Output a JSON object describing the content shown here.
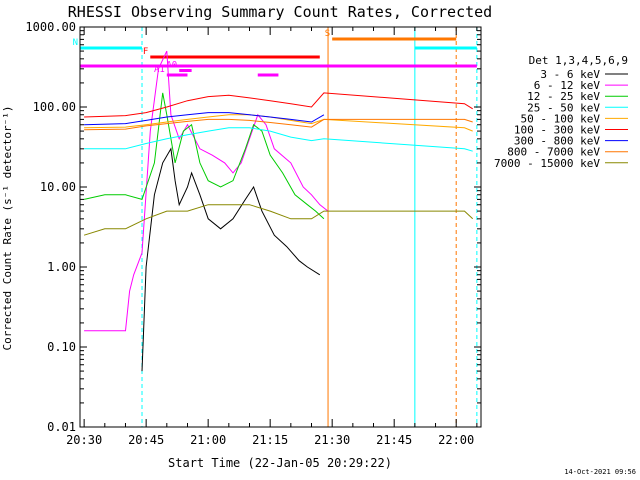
{
  "chart_data": {
    "type": "line",
    "title": "RHESSI Observing Summary Count Rates, Corrected",
    "xlabel": "Start Time (22-Jan-05 20:29:22)",
    "ylabel": "Corrected Count Rate (s⁻¹ detector⁻¹)",
    "y_scale": "log",
    "ylim": [
      0.01,
      1000
    ],
    "xlim": [
      "20:29",
      "22:06"
    ],
    "x_ticks": [
      "20:30",
      "20:45",
      "21:00",
      "21:15",
      "21:30",
      "21:45",
      "22:00"
    ],
    "y_ticks": [
      "0.01",
      "0.10",
      "1.00",
      "10.00",
      "100.00",
      "1000.00"
    ],
    "legend_title": "Det 1,3,4,5,6,9",
    "legend_position": "right",
    "footer_date": "14-Oct-2021 09:56",
    "series": [
      {
        "name": "3 - 6 keV",
        "color": "#000000",
        "points": [
          [
            "20:44",
            0.05
          ],
          [
            "20:45",
            1.0
          ],
          [
            "20:47",
            8
          ],
          [
            "20:49",
            20
          ],
          [
            "20:51",
            30
          ],
          [
            "20:52",
            12
          ],
          [
            "20:53",
            6
          ],
          [
            "20:55",
            10
          ],
          [
            "20:56",
            15
          ],
          [
            "20:58",
            8
          ],
          [
            "21:00",
            4
          ],
          [
            "21:03",
            3
          ],
          [
            "21:06",
            4
          ],
          [
            "21:09",
            7
          ],
          [
            "21:11",
            10
          ],
          [
            "21:13",
            5
          ],
          [
            "21:16",
            2.5
          ],
          [
            "21:19",
            1.8
          ],
          [
            "21:22",
            1.2
          ],
          [
            "21:24",
            1.0
          ],
          [
            "21:27",
            0.8
          ]
        ]
      },
      {
        "name": "6 - 12 keV",
        "color": "#ff00ff",
        "points": [
          [
            "20:30",
            0.16
          ],
          [
            "20:40",
            0.16
          ],
          [
            "20:41",
            0.5
          ],
          [
            "20:42",
            0.8
          ],
          [
            "20:44",
            1.5
          ],
          [
            "20:46",
            50
          ],
          [
            "20:48",
            300
          ],
          [
            "20:50",
            500
          ],
          [
            "20:51",
            80
          ],
          [
            "20:53",
            40
          ],
          [
            "20:55",
            60
          ],
          [
            "20:58",
            30
          ],
          [
            "21:01",
            25
          ],
          [
            "21:04",
            20
          ],
          [
            "21:06",
            15
          ],
          [
            "21:08",
            20
          ],
          [
            "21:10",
            40
          ],
          [
            "21:12",
            80
          ],
          [
            "21:14",
            60
          ],
          [
            "21:16",
            30
          ],
          [
            "21:20",
            20
          ],
          [
            "21:23",
            10
          ],
          [
            "21:25",
            8
          ],
          [
            "21:27",
            6
          ],
          [
            "21:29",
            5
          ]
        ]
      },
      {
        "name": "12 - 25 keV",
        "color": "#00cc00",
        "points": [
          [
            "20:30",
            7
          ],
          [
            "20:35",
            8
          ],
          [
            "20:40",
            8
          ],
          [
            "20:44",
            7
          ],
          [
            "20:47",
            20
          ],
          [
            "20:49",
            150
          ],
          [
            "20:50",
            80
          ],
          [
            "20:52",
            20
          ],
          [
            "20:54",
            50
          ],
          [
            "20:56",
            60
          ],
          [
            "20:58",
            20
          ],
          [
            "21:00",
            12
          ],
          [
            "21:03",
            10
          ],
          [
            "21:06",
            12
          ],
          [
            "21:09",
            30
          ],
          [
            "21:11",
            60
          ],
          [
            "21:13",
            50
          ],
          [
            "21:15",
            25
          ],
          [
            "21:18",
            15
          ],
          [
            "21:21",
            8
          ],
          [
            "21:24",
            6
          ],
          [
            "21:26",
            5
          ],
          [
            "21:28",
            4
          ]
        ]
      },
      {
        "name": "25 - 50 keV",
        "color": "#00ffff",
        "points": [
          [
            "20:30",
            30
          ],
          [
            "20:40",
            30
          ],
          [
            "20:45",
            35
          ],
          [
            "20:50",
            40
          ],
          [
            "20:55",
            45
          ],
          [
            "21:00",
            50
          ],
          [
            "21:05",
            55
          ],
          [
            "21:10",
            55
          ],
          [
            "21:15",
            50
          ],
          [
            "21:20",
            42
          ],
          [
            "21:25",
            38
          ],
          [
            "21:28",
            40
          ],
          [
            "22:02",
            30
          ],
          [
            "22:04",
            28
          ]
        ]
      },
      {
        "name": "50 - 100 keV",
        "color": "#ffaa00",
        "points": [
          [
            "20:30",
            55
          ],
          [
            "20:40",
            56
          ],
          [
            "20:45",
            60
          ],
          [
            "20:50",
            65
          ],
          [
            "20:55",
            70
          ],
          [
            "21:00",
            75
          ],
          [
            "21:05",
            80
          ],
          [
            "21:10",
            80
          ],
          [
            "21:15",
            75
          ],
          [
            "21:20",
            68
          ],
          [
            "21:25",
            62
          ],
          [
            "21:28",
            70
          ],
          [
            "22:02",
            55
          ],
          [
            "22:04",
            50
          ]
        ]
      },
      {
        "name": "100 - 300 keV",
        "color": "#ff0000",
        "points": [
          [
            "20:30",
            75
          ],
          [
            "20:40",
            78
          ],
          [
            "20:45",
            85
          ],
          [
            "20:50",
            100
          ],
          [
            "20:55",
            120
          ],
          [
            "21:00",
            135
          ],
          [
            "21:05",
            140
          ],
          [
            "21:10",
            130
          ],
          [
            "21:15",
            120
          ],
          [
            "21:20",
            110
          ],
          [
            "21:25",
            100
          ],
          [
            "21:28",
            150
          ],
          [
            "22:02",
            110
          ],
          [
            "22:04",
            95
          ]
        ]
      },
      {
        "name": "300 - 800 keV",
        "color": "#0000ff",
        "points": [
          [
            "20:30",
            60
          ],
          [
            "20:40",
            62
          ],
          [
            "20:45",
            68
          ],
          [
            "20:50",
            75
          ],
          [
            "20:55",
            80
          ],
          [
            "21:00",
            85
          ],
          [
            "21:05",
            85
          ],
          [
            "21:10",
            80
          ],
          [
            "21:15",
            75
          ],
          [
            "21:20",
            70
          ],
          [
            "21:25",
            65
          ],
          [
            "21:28",
            80
          ]
        ]
      },
      {
        "name": "800 - 7000 keV",
        "color": "#ff7700",
        "points": [
          [
            "20:30",
            52
          ],
          [
            "20:40",
            53
          ],
          [
            "20:45",
            58
          ],
          [
            "20:50",
            62
          ],
          [
            "20:55",
            66
          ],
          [
            "21:00",
            70
          ],
          [
            "21:05",
            70
          ],
          [
            "21:10",
            68
          ],
          [
            "21:15",
            64
          ],
          [
            "21:20",
            60
          ],
          [
            "21:25",
            56
          ],
          [
            "21:28",
            70
          ],
          [
            "22:02",
            70
          ],
          [
            "22:04",
            65
          ]
        ]
      },
      {
        "name": "7000 - 15000 keV",
        "color": "#888800",
        "points": [
          [
            "20:30",
            2.5
          ],
          [
            "20:35",
            3
          ],
          [
            "20:40",
            3
          ],
          [
            "20:45",
            4
          ],
          [
            "20:50",
            5
          ],
          [
            "20:55",
            5
          ],
          [
            "21:00",
            6
          ],
          [
            "21:05",
            6
          ],
          [
            "21:10",
            6
          ],
          [
            "21:15",
            5
          ],
          [
            "21:20",
            4
          ],
          [
            "21:25",
            4
          ],
          [
            "21:28",
            5
          ],
          [
            "22:02",
            5
          ],
          [
            "22:04",
            4
          ]
        ]
      }
    ],
    "vertical_lines": [
      {
        "time": "20:29",
        "color": "#00ffff",
        "style": "solid"
      },
      {
        "time": "20:44",
        "color": "#00ffff",
        "style": "dashed"
      },
      {
        "time": "21:29",
        "color": "#ff7700",
        "style": "solid"
      },
      {
        "time": "21:50",
        "color": "#00ffff",
        "style": "solid"
      },
      {
        "time": "22:00",
        "color": "#ff7700",
        "style": "dashed"
      },
      {
        "time": "22:05",
        "color": "#00ffff",
        "style": "dashed"
      }
    ],
    "flag_bars": [
      {
        "label": "N",
        "color": "#00ffff",
        "start": "20:29",
        "end": "20:44",
        "row": 0
      },
      {
        "label": "",
        "color": "#00ffff",
        "start": "21:50",
        "end": "22:05",
        "row": 0
      },
      {
        "label": "S",
        "color": "#ff7700",
        "start": "21:30",
        "end": "22:00",
        "row": -1
      },
      {
        "label": "F",
        "color": "#ff0000",
        "start": "20:46",
        "end": "21:27",
        "row": 1
      },
      {
        "label": "",
        "color": "#ff00ff",
        "start": "20:29",
        "end": "22:05",
        "row": 2
      },
      {
        "label": "A0",
        "color": "#ff00ff",
        "start": "20:53",
        "end": "20:56",
        "row": 2.5
      },
      {
        "label": "A1",
        "color": "#ff00ff",
        "start": "20:50",
        "end": "20:53",
        "row": 3
      },
      {
        "label": "",
        "color": "#ff00ff",
        "start": "20:52",
        "end": "20:55",
        "row": 3
      },
      {
        "label": "",
        "color": "#ff00ff",
        "start": "21:12",
        "end": "21:17",
        "row": 3
      }
    ]
  }
}
